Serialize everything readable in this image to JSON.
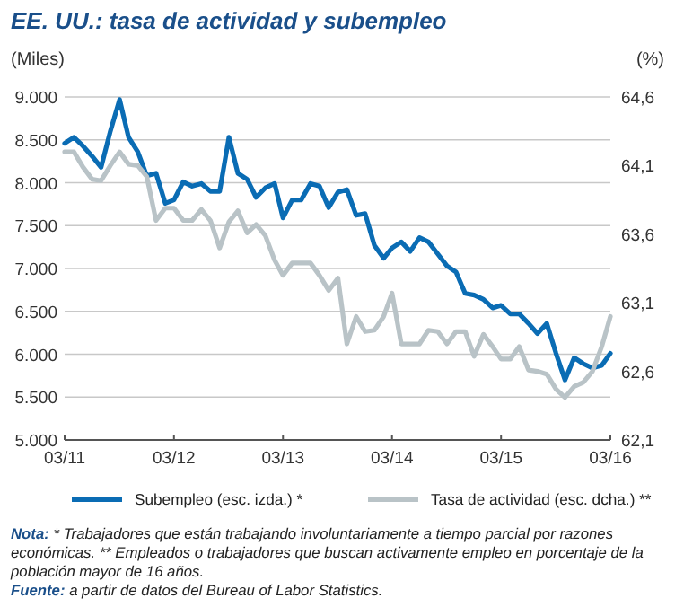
{
  "chart_data": {
    "type": "line",
    "title": "EE. UU.: tasa de actividad y subempleo",
    "ylabel": "(Miles)",
    "y2label": "(%)",
    "x": [
      "2011-03",
      "2011-04",
      "2011-05",
      "2011-06",
      "2011-07",
      "2011-08",
      "2011-09",
      "2011-10",
      "2011-11",
      "2011-12",
      "2012-01",
      "2012-02",
      "2012-03",
      "2012-04",
      "2012-05",
      "2012-06",
      "2012-07",
      "2012-08",
      "2012-09",
      "2012-10",
      "2012-11",
      "2012-12",
      "2013-01",
      "2013-02",
      "2013-03",
      "2013-04",
      "2013-05",
      "2013-06",
      "2013-07",
      "2013-08",
      "2013-09",
      "2013-10",
      "2013-11",
      "2013-12",
      "2014-01",
      "2014-02",
      "2014-03",
      "2014-04",
      "2014-05",
      "2014-06",
      "2014-07",
      "2014-08",
      "2014-09",
      "2014-10",
      "2014-11",
      "2014-12",
      "2015-01",
      "2015-02",
      "2015-03",
      "2015-04",
      "2015-05",
      "2015-06",
      "2015-07",
      "2015-08",
      "2015-09",
      "2015-10",
      "2015-11",
      "2015-12",
      "2016-01",
      "2016-02",
      "2016-03"
    ],
    "series": [
      {
        "name": "Subempleo (esc. izda.) *",
        "color": "#0a6cb4",
        "values": [
          8460,
          8530,
          8430,
          8310,
          8180,
          8600,
          8970,
          8530,
          8360,
          8080,
          8110,
          7760,
          7800,
          8010,
          7960,
          7990,
          7900,
          7900,
          8530,
          8110,
          8040,
          7830,
          7940,
          7990,
          7590,
          7800,
          7800,
          7990,
          7960,
          7710,
          7890,
          7920,
          7620,
          7640,
          7270,
          7120,
          7240,
          7310,
          7200,
          7360,
          7310,
          7170,
          7030,
          6960,
          6710,
          6690,
          6640,
          6540,
          6570,
          6470,
          6470,
          6360,
          6240,
          6360,
          6010,
          5700,
          5960,
          5890,
          5840,
          5870,
          6010
        ]
      },
      {
        "name": "Tasa de actividad (esc. dcha.) **",
        "color": "#b9c3c7",
        "axis": "y2",
        "values": [
          64.2,
          64.2,
          64.09,
          64.0,
          63.99,
          64.1,
          64.2,
          64.11,
          64.1,
          64.02,
          63.7,
          63.79,
          63.79,
          63.7,
          63.7,
          63.78,
          63.7,
          63.5,
          63.69,
          63.77,
          63.61,
          63.67,
          63.59,
          63.41,
          63.3,
          63.39,
          63.39,
          63.39,
          63.3,
          63.19,
          63.28,
          62.8,
          63.0,
          62.89,
          62.9,
          63.0,
          63.17,
          62.8,
          62.8,
          62.8,
          62.9,
          62.89,
          62.8,
          62.89,
          62.89,
          62.71,
          62.87,
          62.78,
          62.69,
          62.69,
          62.78,
          62.61,
          62.6,
          62.58,
          62.47,
          62.41,
          62.49,
          62.52,
          62.6,
          62.78,
          63.0
        ]
      }
    ],
    "xlim": [
      "2011-03",
      "2016-03"
    ],
    "xticks": [
      {
        "value": "2011-03",
        "label": "03/11"
      },
      {
        "value": "2012-03",
        "label": "03/12"
      },
      {
        "value": "2013-03",
        "label": "03/13"
      },
      {
        "value": "2014-03",
        "label": "03/14"
      },
      {
        "value": "2015-03",
        "label": "03/15"
      },
      {
        "value": "2016-03",
        "label": "03/16"
      }
    ],
    "ylim": [
      5000,
      9000
    ],
    "yticks": [
      {
        "value": 5000,
        "label": "5.000"
      },
      {
        "value": 5500,
        "label": "5.500"
      },
      {
        "value": 6000,
        "label": "6.000"
      },
      {
        "value": 6500,
        "label": "6.500"
      },
      {
        "value": 7000,
        "label": "7.000"
      },
      {
        "value": 7500,
        "label": "7.500"
      },
      {
        "value": 8000,
        "label": "8.000"
      },
      {
        "value": 8500,
        "label": "8.500"
      },
      {
        "value": 9000,
        "label": "9.000"
      }
    ],
    "y2lim": [
      62.1,
      64.6
    ],
    "y2ticks": [
      {
        "value": 62.1,
        "label": "62,1"
      },
      {
        "value": 62.6,
        "label": "62,6"
      },
      {
        "value": 63.1,
        "label": "63,1"
      },
      {
        "value": 63.6,
        "label": "63,6"
      },
      {
        "value": 64.1,
        "label": "64,1"
      },
      {
        "value": 64.6,
        "label": "64,6"
      }
    ],
    "grid": "y",
    "legend": "bottom",
    "marker": "none",
    "line_style": "solid",
    "annotations": [
      "Nota: * Trabajadores que están trabajando involuntariamente a tiempo parcial por razones económicas.   ** Empleados o trabajadores que buscan activamente empleo en porcentaje de la población mayor de 16 años.",
      "Fuente: a partir de datos del Bureau of Labor Statistics."
    ]
  }
}
